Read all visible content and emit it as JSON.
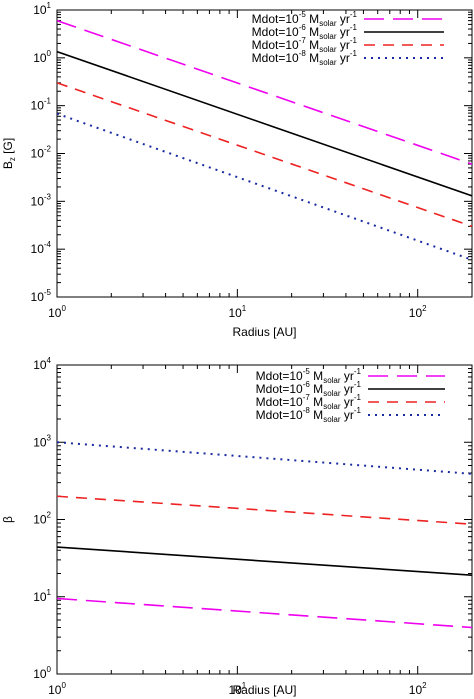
{
  "chart_data": [
    {
      "type": "line",
      "xlabel": "Radius [AU]",
      "ylabel": {
        "base": "B",
        "sub": "z",
        "unit": " [G]"
      },
      "xscale": "log",
      "yscale": "log",
      "xlim": [
        1,
        200
      ],
      "ylim": [
        1e-05,
        10
      ],
      "xticks": [
        {
          "value": 1,
          "mant": "10",
          "exp": "0"
        },
        {
          "value": 10,
          "mant": "10",
          "exp": "1"
        },
        {
          "value": 100,
          "mant": "10",
          "exp": "2"
        }
      ],
      "yticks": [
        {
          "value": 1e-05,
          "mant": "10",
          "exp": "-5"
        },
        {
          "value": 0.0001,
          "mant": "10",
          "exp": "-4"
        },
        {
          "value": 0.001,
          "mant": "10",
          "exp": "-3"
        },
        {
          "value": 0.01,
          "mant": "10",
          "exp": "-2"
        },
        {
          "value": 0.1,
          "mant": "10",
          "exp": "-1"
        },
        {
          "value": 1,
          "mant": "10",
          "exp": "0"
        },
        {
          "value": 10,
          "mant": "10",
          "exp": "1"
        }
      ],
      "grid": false,
      "legend_position": "top-right",
      "series": [
        {
          "label": [
            "Mdot=10",
            "-5",
            " M",
            "solar",
            " yr",
            "-1"
          ],
          "x": [
            1,
            200
          ],
          "y": [
            6.0,
            0.006
          ],
          "color": "#ee00ee",
          "dash": "long-dash"
        },
        {
          "label": [
            "Mdot=10",
            "-6",
            " M",
            "solar",
            " yr",
            "-1"
          ],
          "x": [
            1,
            200
          ],
          "y": [
            1.35,
            0.0013
          ],
          "color": "#000000",
          "dash": "solid"
        },
        {
          "label": [
            "Mdot=10",
            "-7",
            " M",
            "solar",
            " yr",
            "-1"
          ],
          "x": [
            1,
            200
          ],
          "y": [
            0.3,
            0.0003
          ],
          "color": "#ee2222",
          "dash": "dash"
        },
        {
          "label": [
            "Mdot=10",
            "-8",
            " M",
            "solar",
            " yr",
            "-1"
          ],
          "x": [
            1,
            200
          ],
          "y": [
            0.068,
            6e-05
          ],
          "color": "#1a2aa0",
          "dash": "dot"
        }
      ]
    },
    {
      "type": "line",
      "xlabel": "Radius [AU]",
      "ylabel": {
        "base": "β",
        "sub": "",
        "unit": ""
      },
      "xscale": "log",
      "yscale": "log",
      "xlim": [
        1,
        200
      ],
      "ylim": [
        1,
        10000
      ],
      "xticks": [
        {
          "value": 1,
          "mant": "10",
          "exp": "0"
        },
        {
          "value": 10,
          "mant": "10",
          "exp": "1"
        },
        {
          "value": 100,
          "mant": "10",
          "exp": "2"
        }
      ],
      "yticks": [
        {
          "value": 1,
          "mant": "10",
          "exp": "0"
        },
        {
          "value": 10,
          "mant": "10",
          "exp": "1"
        },
        {
          "value": 100,
          "mant": "10",
          "exp": "2"
        },
        {
          "value": 1000,
          "mant": "10",
          "exp": "3"
        },
        {
          "value": 10000,
          "mant": "10",
          "exp": "4"
        }
      ],
      "grid": false,
      "legend_position": "top-right",
      "series": [
        {
          "label": [
            "Mdot=10",
            "-5",
            " M",
            "solar",
            " yr",
            "-1"
          ],
          "x": [
            1,
            200
          ],
          "y": [
            9.5,
            4.0
          ],
          "color": "#ee00ee",
          "dash": "long-dash"
        },
        {
          "label": [
            "Mdot=10",
            "-6",
            " M",
            "solar",
            " yr",
            "-1"
          ],
          "x": [
            1,
            200
          ],
          "y": [
            44,
            19
          ],
          "color": "#000000",
          "dash": "solid"
        },
        {
          "label": [
            "Mdot=10",
            "-7",
            " M",
            "solar",
            " yr",
            "-1"
          ],
          "x": [
            1,
            200
          ],
          "y": [
            200,
            87
          ],
          "color": "#ee2222",
          "dash": "dash"
        },
        {
          "label": [
            "Mdot=10",
            "-8",
            " M",
            "solar",
            " yr",
            "-1"
          ],
          "x": [
            1,
            200
          ],
          "y": [
            1000,
            390
          ],
          "color": "#1a2aa0",
          "dash": "dot"
        }
      ]
    }
  ]
}
